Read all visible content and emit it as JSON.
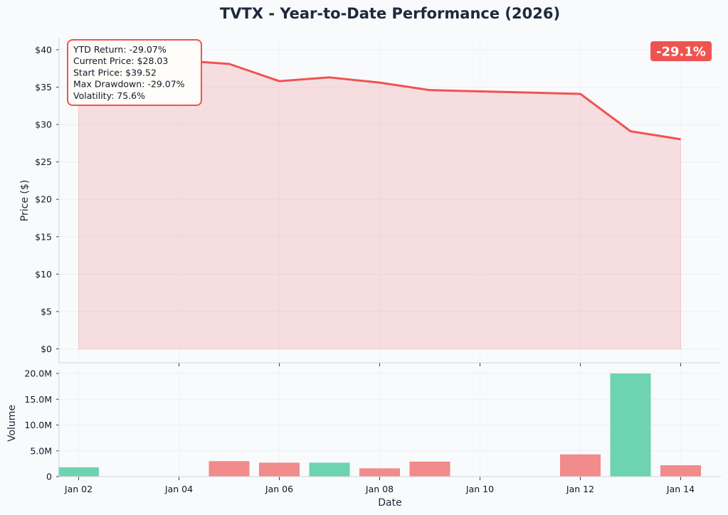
{
  "chart_data": [
    {
      "type": "area",
      "title": "TVTX - Year-to-Date Performance (2026)",
      "ylabel": "Price ($)",
      "ylim": [
        -2,
        41.5
      ],
      "y_ticks": [
        0,
        5,
        10,
        15,
        20,
        25,
        30,
        35,
        40
      ],
      "y_tick_labels": [
        "$0",
        "$5",
        "$10",
        "$15",
        "$20",
        "$25",
        "$30",
        "$35",
        "$40"
      ],
      "x": [
        "2026-01-02",
        "2026-01-05",
        "2026-01-06",
        "2026-01-07",
        "2026-01-08",
        "2026-01-09",
        "2026-01-12",
        "2026-01-13",
        "2026-01-14"
      ],
      "series": [
        {
          "values": [
            39.52,
            38.1,
            35.8,
            36.3,
            35.6,
            34.6,
            34.1,
            29.1,
            28.03
          ],
          "color": "#ef5350"
        }
      ],
      "grid": true,
      "stats_box": {
        "lines": [
          "YTD Return: -29.07%",
          "Current Price: $28.03",
          "Start Price: $39.52",
          "Max Drawdown: -29.07%",
          "Volatility: 75.6%"
        ],
        "placement": "top-left",
        "border_color": "#ef5350"
      },
      "badge": {
        "text": "-29.1%",
        "placement": "top-right",
        "color": "#ef5350"
      }
    },
    {
      "type": "bar",
      "xlabel": "Date",
      "ylabel": "Volume",
      "ylim": [
        0,
        20
      ],
      "y_ticks": [
        0,
        5,
        10,
        15,
        20
      ],
      "y_tick_labels": [
        "0",
        "5.0M",
        "10.0M",
        "15.0M",
        "20.0M"
      ],
      "x_ticks": [
        "2026-01-02",
        "2026-01-04",
        "2026-01-06",
        "2026-01-08",
        "2026-01-10",
        "2026-01-12",
        "2026-01-14"
      ],
      "x_tick_labels": [
        "Jan 02",
        "Jan 04",
        "Jan 06",
        "Jan 08",
        "Jan 10",
        "Jan 12",
        "Jan 14"
      ],
      "x": [
        "2026-01-02",
        "2026-01-05",
        "2026-01-06",
        "2026-01-07",
        "2026-01-08",
        "2026-01-09",
        "2026-01-12",
        "2026-01-13",
        "2026-01-14"
      ],
      "values_millions": [
        1.8,
        3.0,
        2.7,
        2.7,
        1.6,
        2.9,
        4.3,
        20.0,
        2.2
      ],
      "direction": [
        "up",
        "down",
        "down",
        "up",
        "down",
        "down",
        "down",
        "up",
        "down"
      ],
      "colors": {
        "up": "#6dd3b0",
        "down": "#f28b8b"
      },
      "grid": true
    }
  ]
}
